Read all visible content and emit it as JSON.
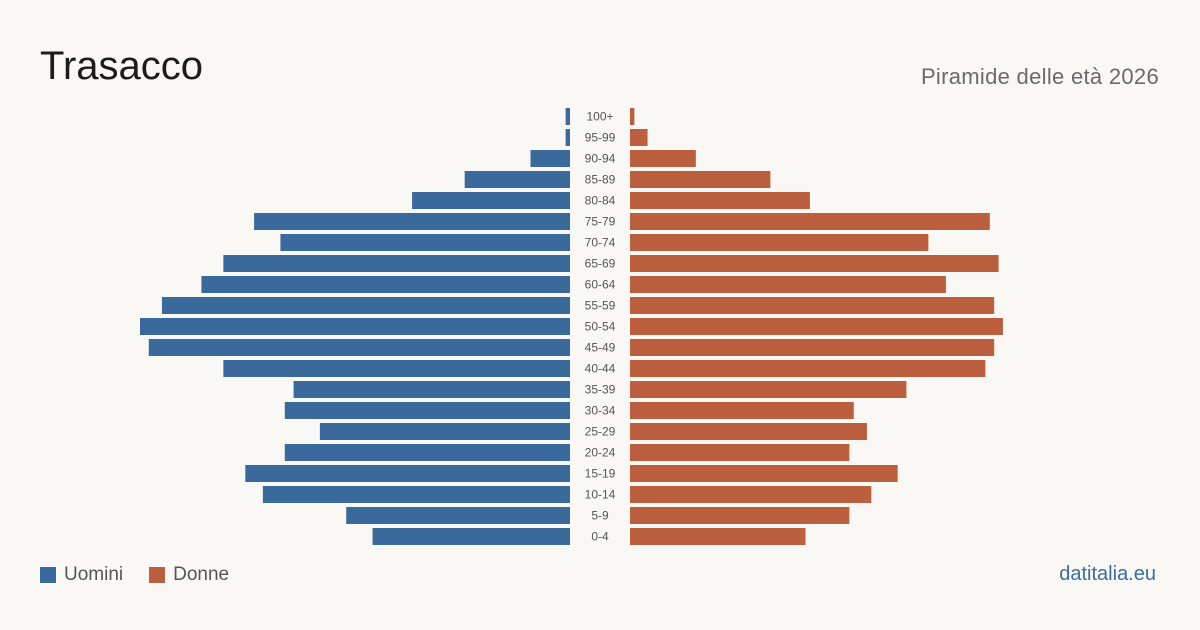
{
  "header": {
    "title": "Trasacco",
    "subtitle": "Piramide delle età 2026"
  },
  "legend": {
    "men_label": "Uomini",
    "women_label": "Donne"
  },
  "footer": {
    "brand": "datitalia.eu"
  },
  "colors": {
    "men": "#3a6a9b",
    "women": "#bb5f3e",
    "background": "#faf8f4",
    "tick_text": "#555555"
  },
  "chart_data": {
    "type": "bar",
    "orientation": "horizontal-pyramid",
    "categories": [
      "100+",
      "95-99",
      "90-94",
      "85-89",
      "80-84",
      "75-79",
      "70-74",
      "65-69",
      "60-64",
      "55-59",
      "50-54",
      "45-49",
      "40-44",
      "35-39",
      "30-34",
      "25-29",
      "20-24",
      "15-19",
      "10-14",
      "5-9",
      "0-4"
    ],
    "series": [
      {
        "name": "Uomini",
        "values": [
          1,
          1,
          9,
          24,
          36,
          72,
          66,
          79,
          84,
          93,
          98,
          96,
          79,
          63,
          65,
          57,
          65,
          74,
          70,
          51,
          45
        ]
      },
      {
        "name": "Donne",
        "values": [
          1,
          4,
          15,
          32,
          41,
          82,
          68,
          84,
          72,
          83,
          85,
          83,
          81,
          63,
          51,
          54,
          50,
          61,
          55,
          50,
          40
        ]
      }
    ],
    "max_value": 98,
    "grid": false,
    "legend_position": "bottom-left"
  }
}
